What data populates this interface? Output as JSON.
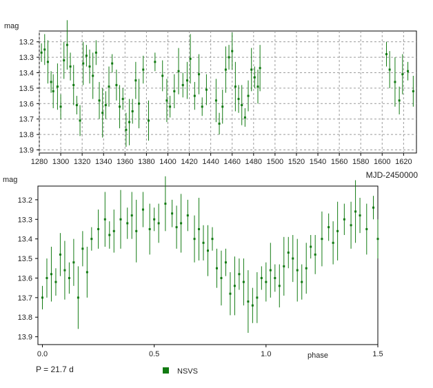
{
  "chart_data": [
    {
      "type": "scatter",
      "title": "",
      "xlabel": "MJD-2450000",
      "ylabel": "mag",
      "xlim": [
        1280,
        1632
      ],
      "ylim": [
        13.92,
        13.13
      ],
      "y_inverted": true,
      "grid": true,
      "grid_style": "dashed",
      "x_ticks": [
        1280,
        1300,
        1320,
        1340,
        1360,
        1380,
        1400,
        1420,
        1440,
        1460,
        1480,
        1500,
        1520,
        1540,
        1560,
        1580,
        1600,
        1620
      ],
      "y_ticks": [
        13.2,
        13.3,
        13.4,
        13.5,
        13.6,
        13.7,
        13.8,
        13.9
      ],
      "color": "#117a11",
      "series": [
        {
          "name": "NSVS",
          "x": [
            1282,
            1285,
            1288,
            1291,
            1293,
            1297,
            1300,
            1303,
            1306,
            1309,
            1312,
            1315,
            1318,
            1321,
            1324,
            1327,
            1330,
            1333,
            1336,
            1339,
            1342,
            1345,
            1348,
            1352,
            1355,
            1358,
            1361,
            1364,
            1367,
            1370,
            1373,
            1377,
            1382,
            1388,
            1395,
            1399,
            1402,
            1406,
            1410,
            1414,
            1418,
            1421,
            1425,
            1429,
            1432,
            1436,
            1445,
            1448,
            1451,
            1454,
            1457,
            1460,
            1463,
            1466,
            1469,
            1472,
            1475,
            1478,
            1481,
            1484,
            1486,
            1604,
            1607,
            1612,
            1616,
            1619,
            1624,
            1629
          ],
          "y": [
            13.27,
            13.25,
            13.33,
            13.46,
            13.52,
            13.49,
            13.62,
            13.32,
            13.22,
            13.36,
            13.48,
            13.61,
            13.71,
            13.34,
            13.29,
            13.36,
            13.42,
            13.27,
            13.58,
            13.66,
            13.61,
            13.49,
            13.34,
            13.48,
            13.62,
            13.57,
            13.77,
            13.72,
            13.65,
            13.45,
            13.6,
            13.38,
            13.71,
            13.33,
            13.42,
            13.58,
            13.62,
            13.52,
            13.39,
            13.48,
            13.45,
            13.31,
            13.55,
            13.41,
            13.62,
            13.51,
            13.58,
            13.73,
            13.62,
            13.38,
            13.3,
            13.26,
            13.49,
            13.57,
            13.61,
            13.69,
            13.55,
            13.38,
            13.43,
            13.49,
            13.37,
            13.28,
            13.38,
            13.46,
            13.58,
            13.41,
            13.39,
            13.52
          ]
        }
      ]
    },
    {
      "type": "scatter",
      "title": "",
      "xlabel": "phase",
      "ylabel": "mag",
      "xlim": [
        -0.02,
        1.5
      ],
      "ylim": [
        13.94,
        13.13
      ],
      "y_inverted": true,
      "grid": false,
      "x_ticks": [
        0.0,
        0.5,
        1.0,
        1.5
      ],
      "x_tick_labels": [
        "0.0",
        "0.5",
        "1.0",
        "1.5"
      ],
      "y_ticks": [
        13.2,
        13.3,
        13.4,
        13.5,
        13.6,
        13.7,
        13.8,
        13.9
      ],
      "color": "#117a11",
      "series": [
        {
          "name": "NSVS",
          "x": [
            0.0,
            0.02,
            0.04,
            0.06,
            0.08,
            0.1,
            0.12,
            0.14,
            0.16,
            0.18,
            0.2,
            0.22,
            0.25,
            0.28,
            0.3,
            0.32,
            0.35,
            0.38,
            0.4,
            0.42,
            0.45,
            0.48,
            0.5,
            0.52,
            0.55,
            0.58,
            0.6,
            0.62,
            0.65,
            0.68,
            0.7,
            0.72,
            0.74,
            0.76,
            0.78,
            0.8,
            0.82,
            0.84,
            0.86,
            0.88,
            0.9,
            0.92,
            0.94,
            0.96,
            0.98,
            1.0,
            1.02,
            1.04,
            1.06,
            1.08,
            1.1,
            1.12,
            1.14,
            1.16,
            1.18,
            1.2,
            1.22,
            1.25,
            1.28,
            1.3,
            1.32,
            1.35,
            1.38,
            1.4,
            1.42,
            1.45,
            1.48,
            1.5
          ],
          "y": [
            13.7,
            13.6,
            13.58,
            13.62,
            13.48,
            13.56,
            13.6,
            13.52,
            13.7,
            13.45,
            13.57,
            13.4,
            13.35,
            13.3,
            13.38,
            13.36,
            13.3,
            13.32,
            13.28,
            13.36,
            13.25,
            13.35,
            13.3,
            13.32,
            13.22,
            13.27,
            13.34,
            13.32,
            13.28,
            13.4,
            13.35,
            13.42,
            13.46,
            13.4,
            13.55,
            13.6,
            13.52,
            13.68,
            13.64,
            13.58,
            13.62,
            13.72,
            13.74,
            13.7,
            13.6,
            13.62,
            13.56,
            13.6,
            13.64,
            13.54,
            13.47,
            13.5,
            13.56,
            13.62,
            13.55,
            13.44,
            13.48,
            13.4,
            13.34,
            13.42,
            13.36,
            13.3,
            13.33,
            13.26,
            13.28,
            13.35,
            13.24,
            13.4
          ]
        }
      ]
    }
  ],
  "labels": {
    "top_ylabel": "mag",
    "top_xlabel": "MJD-2450000",
    "bottom_ylabel": "mag",
    "bottom_xlabel": "phase",
    "period": "P = 21.7 d",
    "legend": "NSVS"
  },
  "colors": {
    "points": "#117a11",
    "grid": "#9a9a9a",
    "frame": "#000000"
  }
}
